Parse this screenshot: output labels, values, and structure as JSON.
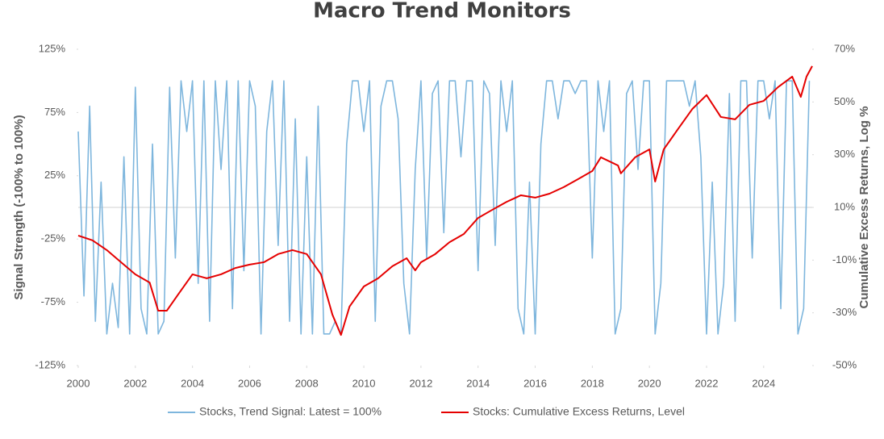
{
  "chart_data": {
    "type": "line",
    "title": "Macro Trend Monitors",
    "y_label": "Signal Strength (-100% to 100%)",
    "y2_label": "Cumulative Excess Returns, Log %",
    "xlim": [
      2000,
      2025.7
    ],
    "xticks": [
      2000,
      2002,
      2004,
      2006,
      2008,
      2010,
      2012,
      2014,
      2016,
      2018,
      2020,
      2022,
      2024
    ],
    "ylim": [
      -125,
      125
    ],
    "yticks": [
      {
        "value": -125,
        "label": "-125%"
      },
      {
        "value": -75,
        "label": "-75%"
      },
      {
        "value": -25,
        "label": "-25%"
      },
      {
        "value": 25,
        "label": "25%"
      },
      {
        "value": 75,
        "label": "75%"
      },
      {
        "value": 125,
        "label": "125%"
      }
    ],
    "y2lim": [
      -50,
      70
    ],
    "y2ticks": [
      {
        "value": -50,
        "label": "-50%"
      },
      {
        "value": -30,
        "label": "-30%"
      },
      {
        "value": -10,
        "label": "-10%"
      },
      {
        "value": 10,
        "label": "10%"
      },
      {
        "value": 30,
        "label": "30%"
      },
      {
        "value": 50,
        "label": "50%"
      },
      {
        "value": 70,
        "label": "70%"
      }
    ],
    "legend": "bottom",
    "series": [
      {
        "name": "Stocks, Trend Signal: Latest = 100%",
        "color": "#7eb6dd",
        "axis": "y",
        "x": [
          2000.0,
          2000.2,
          2000.4,
          2000.6,
          2000.8,
          2001.0,
          2001.2,
          2001.4,
          2001.6,
          2001.8,
          2002.0,
          2002.2,
          2002.4,
          2002.6,
          2002.8,
          2003.0,
          2003.2,
          2003.4,
          2003.6,
          2003.8,
          2004.0,
          2004.2,
          2004.4,
          2004.6,
          2004.8,
          2005.0,
          2005.2,
          2005.4,
          2005.6,
          2005.8,
          2006.0,
          2006.2,
          2006.4,
          2006.6,
          2006.8,
          2007.0,
          2007.2,
          2007.4,
          2007.6,
          2007.8,
          2008.0,
          2008.2,
          2008.4,
          2008.6,
          2008.8,
          2009.0,
          2009.2,
          2009.4,
          2009.6,
          2009.8,
          2010.0,
          2010.2,
          2010.4,
          2010.6,
          2010.8,
          2011.0,
          2011.2,
          2011.4,
          2011.6,
          2011.8,
          2012.0,
          2012.2,
          2012.4,
          2012.6,
          2012.8,
          2013.0,
          2013.2,
          2013.4,
          2013.6,
          2013.8,
          2014.0,
          2014.2,
          2014.4,
          2014.6,
          2014.8,
          2015.0,
          2015.2,
          2015.4,
          2015.6,
          2015.8,
          2016.0,
          2016.2,
          2016.4,
          2016.6,
          2016.8,
          2017.0,
          2017.2,
          2017.4,
          2017.6,
          2017.8,
          2018.0,
          2018.2,
          2018.4,
          2018.6,
          2018.8,
          2019.0,
          2019.2,
          2019.4,
          2019.6,
          2019.8,
          2020.0,
          2020.2,
          2020.4,
          2020.6,
          2020.8,
          2021.0,
          2021.2,
          2021.4,
          2021.6,
          2021.8,
          2022.0,
          2022.2,
          2022.4,
          2022.6,
          2022.8,
          2023.0,
          2023.2,
          2023.4,
          2023.6,
          2023.8,
          2024.0,
          2024.2,
          2024.4,
          2024.6,
          2024.8,
          2025.0,
          2025.2,
          2025.4,
          2025.6
        ],
        "values": [
          60,
          -70,
          80,
          -90,
          20,
          -100,
          -60,
          -95,
          40,
          -100,
          95,
          -80,
          -100,
          50,
          -100,
          -90,
          95,
          -40,
          100,
          60,
          100,
          -60,
          100,
          -90,
          100,
          30,
          100,
          -80,
          100,
          -50,
          100,
          80,
          -100,
          60,
          100,
          -30,
          100,
          -90,
          70,
          -100,
          40,
          -100,
          80,
          -100,
          -100,
          -90,
          -100,
          50,
          100,
          100,
          60,
          100,
          -90,
          80,
          100,
          100,
          70,
          -60,
          -100,
          30,
          100,
          -40,
          90,
          100,
          -20,
          100,
          100,
          40,
          100,
          100,
          -50,
          100,
          90,
          -30,
          100,
          60,
          100,
          -80,
          -100,
          20,
          -100,
          50,
          100,
          100,
          70,
          100,
          100,
          90,
          100,
          100,
          -40,
          100,
          60,
          100,
          -100,
          -80,
          90,
          100,
          30,
          100,
          100,
          -100,
          -60,
          100,
          100,
          100,
          100,
          80,
          100,
          40,
          -100,
          20,
          -100,
          -60,
          90,
          -90,
          100,
          100,
          -40,
          100,
          100,
          70,
          100,
          -80,
          100,
          100,
          -100,
          -80,
          100
        ]
      },
      {
        "name": "Stocks:  Cumulative Excess Returns, Level",
        "color": "#e50000",
        "axis": "y2",
        "x": [
          2000.0,
          2000.5,
          2001.0,
          2001.5,
          2002.0,
          2002.5,
          2002.8,
          2003.1,
          2003.5,
          2004.0,
          2004.5,
          2005.0,
          2005.5,
          2006.0,
          2006.5,
          2007.0,
          2007.5,
          2008.0,
          2008.5,
          2008.9,
          2009.2,
          2009.5,
          2010.0,
          2010.5,
          2011.0,
          2011.5,
          2011.8,
          2012.0,
          2012.5,
          2013.0,
          2013.5,
          2014.0,
          2014.5,
          2015.0,
          2015.5,
          2016.0,
          2016.5,
          2017.0,
          2017.5,
          2018.0,
          2018.3,
          2018.9,
          2019.0,
          2019.5,
          2020.0,
          2020.2,
          2020.5,
          2021.0,
          2021.5,
          2022.0,
          2022.5,
          2023.0,
          2023.5,
          2024.0,
          2024.5,
          2025.0,
          2025.3,
          2025.5,
          2025.7
        ],
        "values": [
          -0.7,
          -2.5,
          -6.2,
          -10.8,
          -15.4,
          -18.5,
          -29.2,
          -29.2,
          -23,
          -15.4,
          -16.9,
          -15.4,
          -13,
          -11.7,
          -10.8,
          -7.7,
          -6.2,
          -7.7,
          -15.4,
          -30.7,
          -38.4,
          -27.6,
          -20,
          -16.9,
          -12.3,
          -9.3,
          -13.9,
          -10.8,
          -7.7,
          -3.2,
          -0.1,
          6,
          9.1,
          12.1,
          14.6,
          13.7,
          15.2,
          17.7,
          20.7,
          23.8,
          29,
          25.9,
          22.9,
          29,
          32,
          19.8,
          32,
          39.7,
          47.3,
          52.6,
          44.3,
          43.4,
          48.9,
          50.4,
          55.6,
          59.6,
          51.9,
          59.6,
          63.6
        ]
      }
    ]
  }
}
